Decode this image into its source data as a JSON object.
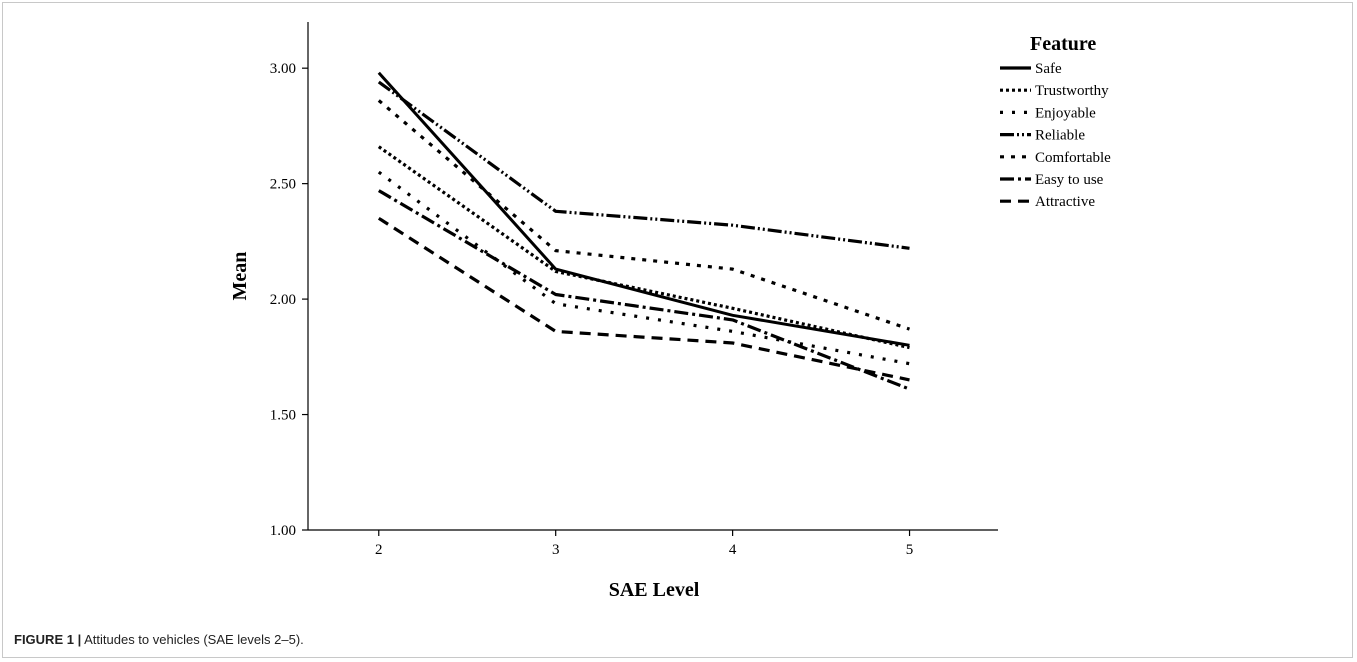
{
  "caption": {
    "figure_label": "FIGURE 1 |",
    "text": "Attitudes to vehicles (SAE levels 2–5)."
  },
  "chart_data": {
    "type": "line",
    "title": "",
    "xlabel": "SAE Level",
    "ylabel": "Mean",
    "x": [
      2,
      3,
      4,
      5
    ],
    "xlim": [
      1.6,
      5.5
    ],
    "ylim": [
      1.0,
      3.2
    ],
    "x_ticks": [
      "2",
      "3",
      "4",
      "5"
    ],
    "y_ticks": [
      "1.00",
      "1.50",
      "2.00",
      "2.50",
      "3.00"
    ],
    "grid": false,
    "legend": {
      "title": "Feature",
      "placement": "top-right"
    },
    "series": [
      {
        "name": "Safe",
        "values": [
          2.98,
          2.13,
          1.93,
          1.8
        ],
        "color": "#000000",
        "dash": "solid"
      },
      {
        "name": "Trustworthy",
        "values": [
          2.66,
          2.12,
          1.96,
          1.79
        ],
        "color": "#000000",
        "dash": "dot"
      },
      {
        "name": "Enjoyable",
        "values": [
          2.55,
          1.98,
          1.86,
          1.72
        ],
        "color": "#000000",
        "dash": "sparse-dot"
      },
      {
        "name": "Reliable",
        "values": [
          2.94,
          2.38,
          2.32,
          2.22
        ],
        "color": "#000000",
        "dash": "dash-dot-dot"
      },
      {
        "name": "Comfortable",
        "values": [
          2.86,
          2.21,
          2.13,
          1.87
        ],
        "color": "#000000",
        "dash": "wide-dot"
      },
      {
        "name": "Easy to use",
        "values": [
          2.47,
          2.02,
          1.91,
          1.61
        ],
        "color": "#000000",
        "dash": "dash-dot"
      },
      {
        "name": "Attractive",
        "values": [
          2.35,
          1.86,
          1.81,
          1.65
        ],
        "color": "#000000",
        "dash": "dash"
      }
    ]
  }
}
